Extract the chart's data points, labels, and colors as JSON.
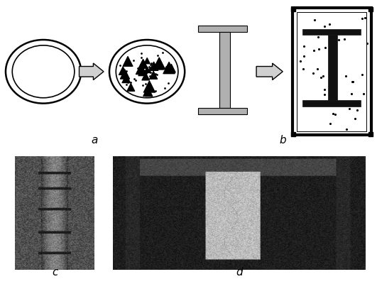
{
  "background_color": "#ffffff",
  "label_a": "a",
  "label_b": "b",
  "label_c": "c",
  "label_d": "d",
  "label_fontsize": 11,
  "fig_width": 5.31,
  "fig_height": 4.0,
  "dpi": 100
}
